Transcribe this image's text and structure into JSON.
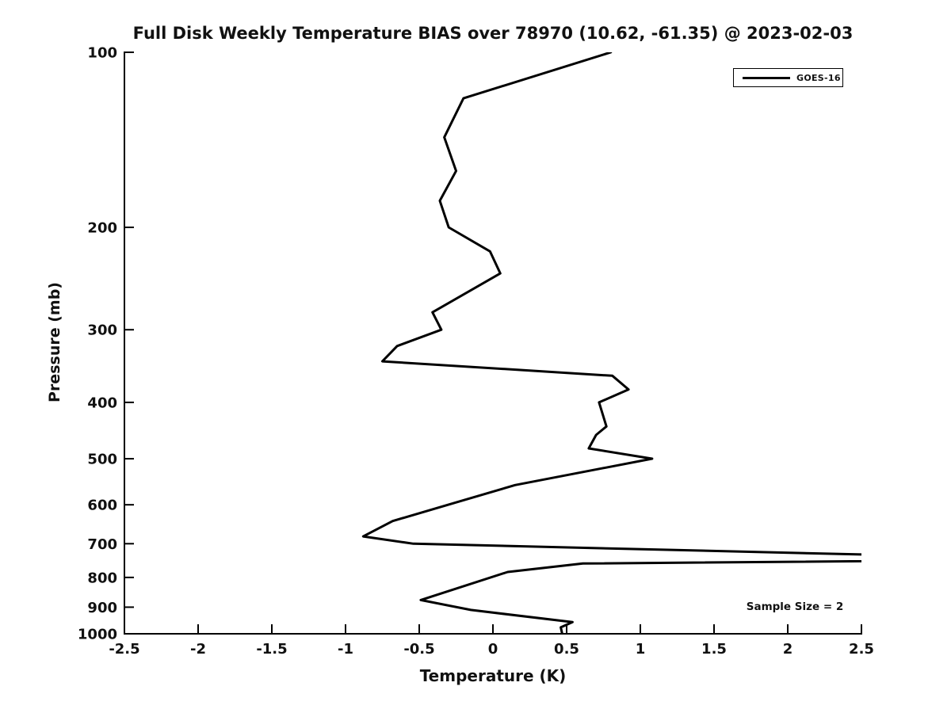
{
  "title": "Full Disk Weekly Temperature BIAS over 78970 (10.62, -61.35) @ 2023-02-03",
  "legend": {
    "label": "GOES-16"
  },
  "annotations": {
    "sample_size": "Sample Size = 2"
  },
  "chart_data": {
    "type": "line",
    "title": "Full Disk Weekly Temperature BIAS over 78970 (10.62, -61.35) @ 2023-02-03",
    "xlabel": "Temperature (K)",
    "ylabel": "Pressure (mb)",
    "xlim": [
      -2.5,
      2.5
    ],
    "ylim": [
      100,
      1000
    ],
    "yscale": "log",
    "y_increases_downward": true,
    "grid": false,
    "legend_position": "upper right",
    "x_ticks": [
      -2.5,
      -2,
      -1.5,
      -1,
      -0.5,
      0,
      0.5,
      1,
      1.5,
      2,
      2.5
    ],
    "y_ticks": [
      100,
      200,
      300,
      400,
      500,
      600,
      700,
      800,
      900,
      1000
    ],
    "series": [
      {
        "name": "GOES-16",
        "color": "#000000",
        "line_width": 3,
        "point_format": "[pressure_mb, bias_K]",
        "points": [
          [
            100,
            0.8
          ],
          [
            120,
            -0.2
          ],
          [
            140,
            -0.33
          ],
          [
            160,
            -0.25
          ],
          [
            180,
            -0.36
          ],
          [
            200,
            -0.3
          ],
          [
            220,
            -0.02
          ],
          [
            240,
            0.05
          ],
          [
            280,
            -0.41
          ],
          [
            300,
            -0.35
          ],
          [
            320,
            -0.65
          ],
          [
            340,
            -0.75
          ],
          [
            360,
            0.81
          ],
          [
            380,
            0.92
          ],
          [
            400,
            0.72
          ],
          [
            440,
            0.77
          ],
          [
            455,
            0.7
          ],
          [
            480,
            0.65
          ],
          [
            500,
            1.08
          ],
          [
            555,
            0.15
          ],
          [
            640,
            -0.68
          ],
          [
            680,
            -0.88
          ],
          [
            700,
            -0.54
          ],
          [
            745,
            3.9
          ],
          [
            757,
            0.61
          ],
          [
            783,
            0.1
          ],
          [
            875,
            -0.49
          ],
          [
            910,
            -0.15
          ],
          [
            955,
            0.54
          ],
          [
            975,
            0.46
          ],
          [
            1000,
            0.47
          ]
        ],
        "note": "Spike near 745 mb exceeds the +2.5 K axis limit and is clipped at the plot edge."
      }
    ],
    "annotations": [
      "Sample Size = 2"
    ]
  }
}
